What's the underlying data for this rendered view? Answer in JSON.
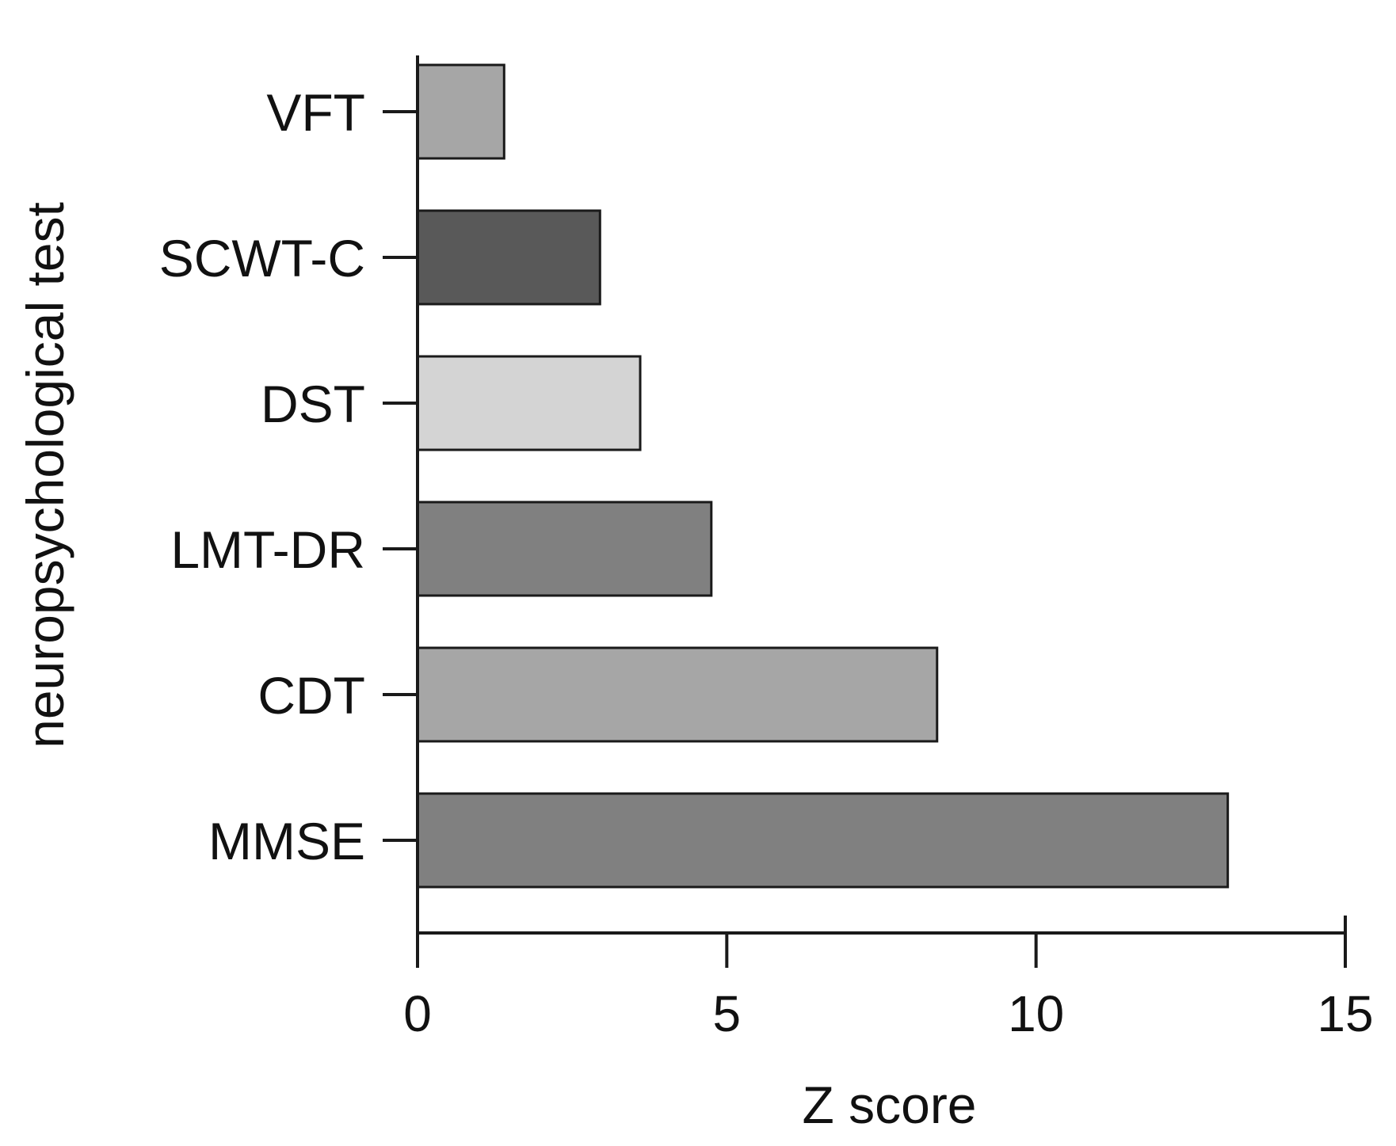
{
  "chart_data": {
    "type": "bar",
    "orientation": "horizontal",
    "categories": [
      "VFT",
      "SCWT-C",
      "DST",
      "LMT-DR",
      "CDT",
      "MMSE"
    ],
    "values": [
      1.4,
      2.95,
      3.6,
      4.75,
      8.4,
      13.1
    ],
    "bar_colors": [
      "#a6a6a6",
      "#595959",
      "#d4d4d4",
      "#808080",
      "#a6a6a6",
      "#808080"
    ],
    "xlabel": "Z score",
    "ylabel": "neuropsychological test",
    "xlim": [
      0,
      15
    ],
    "xticks": [
      0,
      5,
      10,
      15
    ],
    "xtick_labels": [
      "0",
      "5",
      "10",
      "15"
    ],
    "grid": false,
    "legend": "none"
  }
}
